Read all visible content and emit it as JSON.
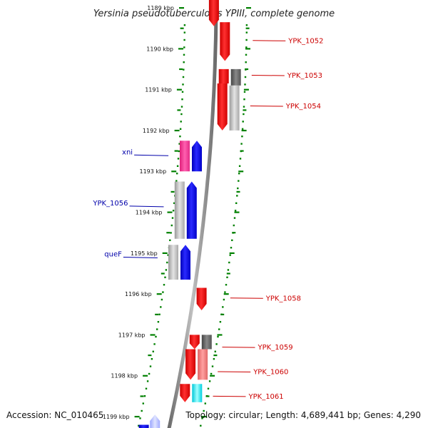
{
  "title": "Yersinia pseudotuberculosis YPIII, complete genome",
  "footer": {
    "accession": "Accession: NC_010465",
    "topology": "Topology: circular; Length: 4,689,441 bp; Genes: 4,290"
  },
  "colors": {
    "forward": "#ff0000",
    "reverse": "#0000ff",
    "label_forward": "#cc0000",
    "label_reverse": "#0000aa",
    "backbone": "#888888",
    "tick": "#008000"
  },
  "ticks": [
    {
      "kbp": 1189,
      "label": "1189 kbp"
    },
    {
      "kbp": 1190,
      "label": "1190 kbp"
    },
    {
      "kbp": 1191,
      "label": "1191 kbp"
    },
    {
      "kbp": 1192,
      "label": "1192 kbp"
    },
    {
      "kbp": 1193,
      "label": "1193 kbp"
    },
    {
      "kbp": 1194,
      "label": "1194 kbp"
    },
    {
      "kbp": 1195,
      "label": "1195 kbp"
    },
    {
      "kbp": 1196,
      "label": "1196 kbp"
    },
    {
      "kbp": 1197,
      "label": "1197 kbp"
    },
    {
      "kbp": 1198,
      "label": "1198 kbp"
    },
    {
      "kbp": 1199,
      "label": "1199 kbp"
    }
  ],
  "forward_labels": [
    {
      "name": "YPK_1052",
      "kbp": 1189.8
    },
    {
      "name": "YPK_1053",
      "kbp": 1190.65
    },
    {
      "name": "YPK_1054",
      "kbp": 1191.4
    },
    {
      "name": "YPK_1058",
      "kbp": 1196.1
    },
    {
      "name": "YPK_1059",
      "kbp": 1197.3
    },
    {
      "name": "YPK_1060",
      "kbp": 1197.9
    },
    {
      "name": "YPK_1061",
      "kbp": 1198.5
    }
  ],
  "reverse_labels": [
    {
      "name": "xni",
      "kbp": 1192.6
    },
    {
      "name": "YPK_1056",
      "kbp": 1193.85
    },
    {
      "name": "queF",
      "kbp": 1195.1
    }
  ]
}
